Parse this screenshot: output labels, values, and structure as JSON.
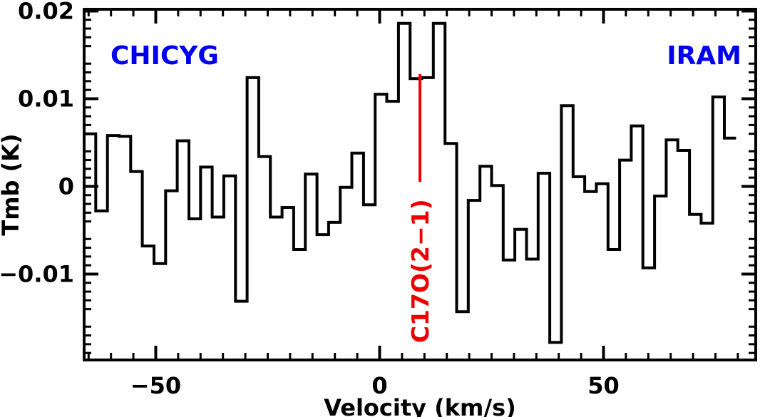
{
  "chart_data": {
    "type": "line",
    "style": "step",
    "title": "",
    "xlabel": "Velocity (km/s)",
    "ylabel": "Tmb (K)",
    "xlim": [
      -66,
      84
    ],
    "ylim": [
      -0.0198,
      0.0202
    ],
    "xticks": [
      -50,
      0,
      50
    ],
    "xtick_labels": [
      "−50",
      "0",
      "50"
    ],
    "yticks": [
      -0.01,
      0,
      0.01,
      0.02
    ],
    "ytick_labels": [
      "−0.01",
      "0",
      "0.01",
      "0.02"
    ],
    "grid": false,
    "bin_width": 2.6,
    "series": [
      {
        "name": "CHICYG spectrum",
        "color": "#000000",
        "x_start": -66,
        "values": [
          0.006,
          -0.0028,
          0.0058,
          0.0057,
          0.0017,
          -0.0068,
          -0.0088,
          -0.0005,
          0.0052,
          -0.0037,
          0.0022,
          -0.0035,
          0.0012,
          -0.0131,
          0.0124,
          0.0034,
          -0.0035,
          -0.0024,
          -0.0072,
          0.0014,
          -0.0055,
          -0.0041,
          -0.0001,
          0.0038,
          -0.0021,
          0.0105,
          0.0097,
          0.0186,
          0.0123,
          0.0124,
          0.0186,
          0.0049,
          -0.0143,
          -0.0016,
          0.0023,
          0.0001,
          -0.0084,
          -0.0049,
          -0.0083,
          0.0015,
          -0.0178,
          0.0092,
          0.0011,
          -0.0006,
          0.0003,
          -0.0072,
          0.003,
          0.0069,
          -0.0093,
          -0.0011,
          0.0053,
          0.0041,
          -0.0032,
          -0.0042,
          0.0102,
          0.0055
        ]
      }
    ],
    "annotations": [
      {
        "text": "CHICYG",
        "position": "top-left",
        "color": "#0000ee"
      },
      {
        "text": "IRAM",
        "position": "top-right",
        "color": "#0000ee"
      },
      {
        "text": "C17O(2−1)",
        "type": "line-marker",
        "x": 9,
        "y_bottom": 0.0005,
        "y_top": 0.0128,
        "color": "#ee0000",
        "orientation": "vertical"
      }
    ]
  }
}
